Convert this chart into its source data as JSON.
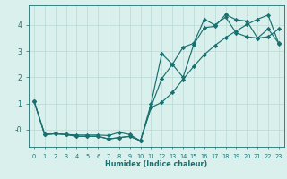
{
  "xlabel": "Humidex (Indice chaleur)",
  "bg_color": "#daf0ec",
  "line_color": "#1a7070",
  "grid_color": "#b8d8d4",
  "xlim": [
    -0.5,
    23.5
  ],
  "ylim": [
    -0.65,
    4.75
  ],
  "x": [
    0,
    1,
    2,
    3,
    4,
    5,
    6,
    7,
    8,
    9,
    10,
    11,
    12,
    13,
    14,
    15,
    16,
    17,
    18,
    19,
    20,
    21,
    22,
    23
  ],
  "line1": [
    1.1,
    -0.18,
    -0.15,
    -0.18,
    -0.2,
    -0.2,
    -0.2,
    -0.22,
    -0.1,
    -0.18,
    -0.42,
    0.88,
    1.95,
    2.5,
    3.15,
    3.3,
    4.22,
    4.0,
    4.3,
    3.7,
    3.55,
    3.5,
    3.85,
    3.3
  ],
  "line2": [
    1.1,
    -0.18,
    -0.15,
    -0.18,
    -0.25,
    -0.25,
    -0.25,
    -0.35,
    -0.3,
    -0.25,
    -0.42,
    1.0,
    2.9,
    2.5,
    2.0,
    3.25,
    3.9,
    3.95,
    4.4,
    4.2,
    4.15,
    3.5,
    3.55,
    3.85
  ],
  "line3": [
    1.1,
    -0.18,
    -0.15,
    -0.18,
    -0.25,
    -0.25,
    -0.25,
    -0.35,
    -0.3,
    -0.25,
    -0.42,
    0.85,
    1.05,
    1.42,
    1.92,
    2.42,
    2.87,
    3.22,
    3.52,
    3.77,
    4.02,
    4.22,
    4.38,
    3.28
  ],
  "yticks": [
    0,
    1,
    2,
    3,
    4
  ],
  "ytick_labels": [
    "-0",
    "1",
    "2",
    "3",
    "4"
  ],
  "marker": "D",
  "markersize": 2.2,
  "linewidth": 0.85
}
